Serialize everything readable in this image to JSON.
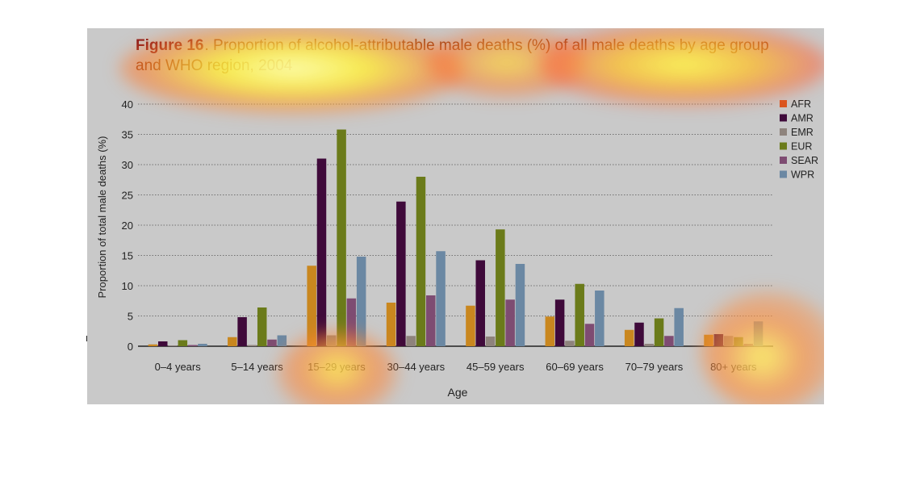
{
  "figure": {
    "label": "Figure 16",
    "caption": ". Proportion of alcohol-attributable male deaths (%) of all male deaths by age group and WHO region, 2004"
  },
  "colors": {
    "panel_bg": "#c9c9c9",
    "figure_label": "#8b1a1a",
    "caption": "#8b3a14",
    "axis_text": "#222222"
  },
  "chart_data": {
    "type": "bar",
    "title": "Figure 16. Proportion of alcohol-attributable male deaths (%) of all male deaths by age group and WHO region, 2004",
    "xlabel": "Age",
    "ylabel": "Proportion of total male deaths (%)",
    "ylim": [
      0,
      40
    ],
    "yticks": [
      0,
      5,
      10,
      15,
      20,
      25,
      30,
      35,
      40
    ],
    "grid": true,
    "legend_position": "top-right",
    "categories": [
      "0–4 years",
      "5–14 years",
      "15–29 years",
      "30–44 years",
      "45–59 years",
      "60–69 years",
      "70–79 years",
      "80+ years"
    ],
    "series": [
      {
        "name": "AFR",
        "color": "#c9871f",
        "legend_color": "#d9541e",
        "values": [
          0.3,
          1.5,
          13.3,
          7.2,
          6.7,
          4.9,
          2.7,
          1.9
        ]
      },
      {
        "name": "AMR",
        "color": "#3f0a3a",
        "values": [
          0.8,
          4.8,
          31.0,
          23.9,
          14.2,
          7.7,
          3.9,
          2.0
        ]
      },
      {
        "name": "EMR",
        "color": "#8e837c",
        "values": [
          0.1,
          0.2,
          1.8,
          1.7,
          1.6,
          0.9,
          0.4,
          1.7
        ]
      },
      {
        "name": "EUR",
        "color": "#6b7b1a",
        "values": [
          1.0,
          6.4,
          35.8,
          28.0,
          19.3,
          10.3,
          4.6,
          1.5
        ]
      },
      {
        "name": "SEAR",
        "color": "#7e4c72",
        "values": [
          0.2,
          1.1,
          7.9,
          8.4,
          7.7,
          3.7,
          1.7,
          0.4
        ]
      },
      {
        "name": "WPR",
        "color": "#6b88a3",
        "values": [
          0.4,
          1.8,
          14.8,
          15.7,
          13.6,
          9.2,
          6.3,
          4.1
        ]
      }
    ]
  }
}
